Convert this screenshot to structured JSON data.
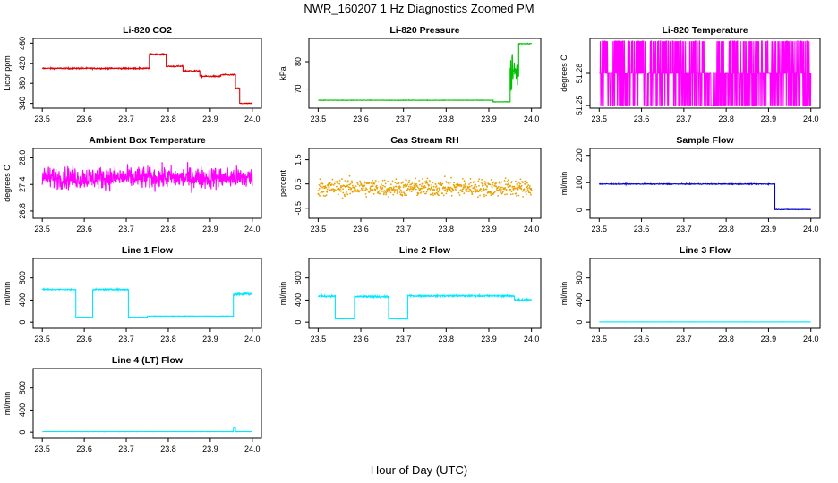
{
  "figure": {
    "title": "NWR_160207  1 Hz Diagnostics Zoomed PM",
    "xlabel": "Hour of Day (UTC)"
  },
  "chart_data": [
    {
      "type": "line",
      "title": "Li-820 CO2",
      "ylabel": "Licor ppm",
      "color": "#e00000",
      "xlim": [
        23.5,
        24.0
      ],
      "ylim": [
        336,
        464
      ],
      "xticks": [
        "23.5",
        "23.6",
        "23.7",
        "23.8",
        "23.9",
        "24.0"
      ],
      "yticks": [
        340,
        380,
        420,
        460
      ],
      "segments": [
        {
          "x": [
            23.5,
            23.755
          ],
          "y": 410,
          "noise": 1.2
        },
        {
          "x": [
            23.755,
            23.795
          ],
          "y": 438,
          "noise": 1.2
        },
        {
          "x": [
            23.795,
            23.835
          ],
          "y": 414,
          "noise": 1.2
        },
        {
          "x": [
            23.835,
            23.875
          ],
          "y": 405,
          "noise": 1.2
        },
        {
          "x": [
            23.875,
            23.925
          ],
          "y": 394,
          "noise": 1.2
        },
        {
          "x": [
            23.925,
            23.96
          ],
          "y": 397,
          "noise": 1.2
        },
        {
          "x": [
            23.96,
            23.97
          ],
          "y": 370,
          "noise": 1.0
        },
        {
          "x": [
            23.97,
            24.0
          ],
          "y": 340,
          "noise": 1.0
        }
      ]
    },
    {
      "type": "line",
      "title": "Li-820 Pressure",
      "ylabel": "kPa",
      "color": "#00c000",
      "xlim": [
        23.5,
        24.0
      ],
      "ylim": [
        64,
        87.5
      ],
      "xticks": [
        "23.5",
        "23.6",
        "23.7",
        "23.8",
        "23.9",
        "24.0"
      ],
      "yticks": [
        70,
        80
      ],
      "segments": [
        {
          "x": [
            23.5,
            23.91
          ],
          "y": 65.9,
          "noise": 0.08
        },
        {
          "x": [
            23.91,
            23.95
          ],
          "y": 65.3,
          "noise": 0.08
        },
        {
          "x": [
            23.95,
            23.97
          ],
          "y": 76,
          "noise": 8
        },
        {
          "x": [
            23.97,
            24.0
          ],
          "y": 86.6,
          "noise": 0.15
        }
      ]
    },
    {
      "type": "line",
      "title": "Li-820 Temperature",
      "ylabel": "degrees C",
      "color": "#ff00ff",
      "xlim": [
        23.5,
        24.0
      ],
      "ylim": [
        51.25,
        51.31
      ],
      "xticks": [
        "23.5",
        "23.6",
        "23.7",
        "23.8",
        "23.9",
        "24.0"
      ],
      "yticks": [
        "51.25",
        "51.28"
      ],
      "levels": [
        51.25,
        51.28,
        51.31
      ],
      "pattern": "binary"
    },
    {
      "type": "line",
      "title": "Ambient Box Temperature",
      "ylabel": "degrees C",
      "color": "#ff00ff",
      "xlim": [
        23.5,
        24.0
      ],
      "ylim": [
        26.7,
        28.15
      ],
      "xticks": [
        "23.5",
        "23.6",
        "23.7",
        "23.8",
        "23.9",
        "24.0"
      ],
      "yticks": [
        "26.8",
        "27.4",
        "28.0"
      ],
      "segments": [
        {
          "x": [
            23.5,
            24.0
          ],
          "y": 27.55,
          "noise": 0.25
        }
      ]
    },
    {
      "type": "scatter",
      "title": "Gas Stream RH",
      "ylabel": "percent",
      "color": "#e8a000",
      "xlim": [
        23.5,
        24.0
      ],
      "ylim": [
        -0.8,
        1.85
      ],
      "xticks": [
        "23.5",
        "23.6",
        "23.7",
        "23.8",
        "23.9",
        "24.0"
      ],
      "yticks": [
        "-0.5",
        "0.5",
        "1.5"
      ],
      "segments": [
        {
          "x": [
            23.5,
            24.0
          ],
          "y": 0.35,
          "noise": 0.35
        }
      ]
    },
    {
      "type": "line",
      "title": "Sample Flow",
      "ylabel": "ml/min",
      "color": "#0000cc",
      "xlim": [
        23.5,
        24.0
      ],
      "ylim": [
        -20,
        215
      ],
      "xticks": [
        "23.5",
        "23.6",
        "23.7",
        "23.8",
        "23.9",
        "24.0"
      ],
      "yticks": [
        0,
        100,
        200
      ],
      "segments": [
        {
          "x": [
            23.5,
            23.915
          ],
          "y": 95,
          "noise": 1.5
        },
        {
          "x": [
            23.915,
            24.0
          ],
          "y": 2,
          "noise": 1.0
        }
      ]
    },
    {
      "type": "line",
      "title": "Line 1 Flow",
      "ylabel": "ml/min",
      "color": "#00e8ff",
      "xlim": [
        23.5,
        24.0
      ],
      "ylim": [
        -60,
        1100
      ],
      "xticks": [
        "23.5",
        "23.6",
        "23.7",
        "23.8",
        "23.9",
        "24.0"
      ],
      "yticks": [
        0,
        400,
        800
      ],
      "segments": [
        {
          "x": [
            23.5,
            23.58
          ],
          "y": 590,
          "noise": 12
        },
        {
          "x": [
            23.58,
            23.62
          ],
          "y": 90,
          "noise": 4
        },
        {
          "x": [
            23.62,
            23.705
          ],
          "y": 590,
          "noise": 12
        },
        {
          "x": [
            23.705,
            23.75
          ],
          "y": 90,
          "noise": 4
        },
        {
          "x": [
            23.75,
            23.955
          ],
          "y": 110,
          "noise": 4
        },
        {
          "x": [
            23.955,
            24.0
          ],
          "y": 510,
          "noise": 25
        }
      ]
    },
    {
      "type": "line",
      "title": "Line 2 Flow",
      "ylabel": "ml/min",
      "color": "#00e8ff",
      "xlim": [
        23.5,
        24.0
      ],
      "ylim": [
        -60,
        1100
      ],
      "xticks": [
        "23.5",
        "23.6",
        "23.7",
        "23.8",
        "23.9",
        "24.0"
      ],
      "yticks": [
        0,
        400,
        800
      ],
      "segments": [
        {
          "x": [
            23.5,
            23.54
          ],
          "y": 470,
          "noise": 15
        },
        {
          "x": [
            23.54,
            23.585
          ],
          "y": 60,
          "noise": 4
        },
        {
          "x": [
            23.585,
            23.665
          ],
          "y": 460,
          "noise": 15
        },
        {
          "x": [
            23.665,
            23.71
          ],
          "y": 60,
          "noise": 4
        },
        {
          "x": [
            23.71,
            23.96
          ],
          "y": 475,
          "noise": 15
        },
        {
          "x": [
            23.96,
            24.0
          ],
          "y": 400,
          "noise": 20
        }
      ]
    },
    {
      "type": "line",
      "title": "Line 3 Flow",
      "ylabel": "ml/min",
      "color": "#00e8ff",
      "xlim": [
        23.5,
        24.0
      ],
      "ylim": [
        -60,
        1100
      ],
      "xticks": [
        "23.5",
        "23.6",
        "23.7",
        "23.8",
        "23.9",
        "24.0"
      ],
      "yticks": [
        0,
        400,
        800
      ],
      "segments": [
        {
          "x": [
            23.5,
            24.0
          ],
          "y": 5,
          "noise": 2
        }
      ]
    },
    {
      "type": "line",
      "title": "Line 4 (LT) Flow",
      "ylabel": "ml/min",
      "color": "#00e8ff",
      "xlim": [
        23.5,
        24.0
      ],
      "ylim": [
        -60,
        1100
      ],
      "xticks": [
        "23.5",
        "23.6",
        "23.7",
        "23.8",
        "23.9",
        "24.0"
      ],
      "yticks": [
        0,
        400,
        800
      ],
      "segments": [
        {
          "x": [
            23.5,
            23.955
          ],
          "y": 10,
          "noise": 2
        },
        {
          "x": [
            23.955,
            23.96
          ],
          "y": 90,
          "noise": 5
        },
        {
          "x": [
            23.96,
            24.0
          ],
          "y": 10,
          "noise": 2
        }
      ]
    }
  ]
}
